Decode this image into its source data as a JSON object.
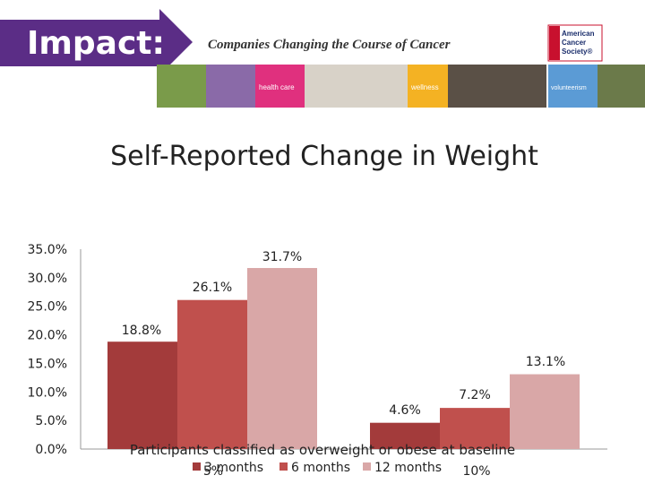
{
  "banner": {
    "impact_text": "Impact:",
    "subtitle": "Companies Changing the Course of Cancer",
    "logo_text": [
      "American",
      "Cancer",
      "Society®"
    ],
    "photo_labels": [
      "health care",
      "wellness",
      "volunteerism"
    ],
    "colors": {
      "purple": "#5b2d86",
      "pink": "#e0307e",
      "yellow": "#f4b223",
      "blue": "#5b9bd5",
      "logo_red": "#c8102e"
    }
  },
  "chart_data": {
    "type": "bar",
    "title": "Self-Reported Change in Weight",
    "categories": [
      "",
      "Participants classified as overweight or obese at baseline"
    ],
    "series": [
      {
        "name": "3 months",
        "values": [
          18.8,
          4.6
        ],
        "color": "#a33b3b"
      },
      {
        "name": "6 months",
        "values": [
          26.1,
          7.2
        ],
        "color": "#c0504d"
      },
      {
        "name": "12 months",
        "values": [
          31.7,
          13.1
        ],
        "color": "#d9a7a7"
      }
    ],
    "ylim": [
      0,
      35
    ],
    "yticks": [
      "0.0%",
      "5.0%",
      "10.0%",
      "15.0%",
      "20.0%",
      "25.0%",
      "30.0%",
      "35.0%"
    ],
    "data_labels": [
      [
        "18.8%",
        "4.6%"
      ],
      [
        "26.1%",
        "7.2%"
      ],
      [
        "31.7%",
        "13.1%"
      ]
    ],
    "xlabel": "Participants classified as overweight or obese at baseline",
    "overlay_text": [
      "5%",
      "10%"
    ],
    "legend_position": "bottom",
    "grid": false
  }
}
